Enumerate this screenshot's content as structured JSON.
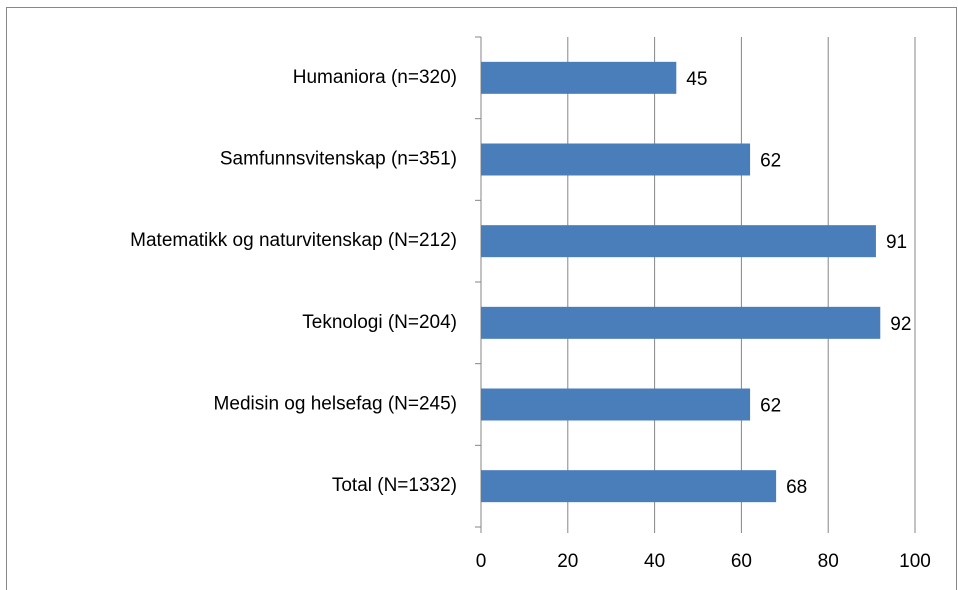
{
  "chart_data": {
    "type": "bar",
    "orientation": "horizontal",
    "categories": [
      "Humaniora  (n=320)",
      "Samfunnsvitenskap  (n=351)",
      "Matematikk og naturvitenskap  (N=212)",
      "Teknologi (N=204)",
      "Medisin og helsefag  (N=245)",
      "Total  (N=1332)"
    ],
    "values": [
      45,
      62,
      91,
      92,
      62,
      68
    ],
    "color": "#4a7ebb",
    "xlim": [
      0,
      100
    ],
    "xticks": [
      0,
      20,
      40,
      60,
      80,
      100
    ],
    "grid": true
  }
}
